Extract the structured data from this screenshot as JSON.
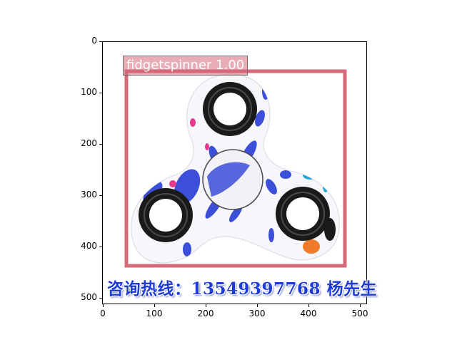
{
  "image": {
    "detection": {
      "label": "fidgetspinner 1.00",
      "box_color": "#d6697a"
    },
    "watermark_text": "咨询热线：13549397768 杨先生",
    "watermark_color": "#1e3bd6"
  },
  "axes": {
    "yticks": [
      "0",
      "100",
      "200",
      "300",
      "400",
      "500"
    ],
    "xticks": [
      "0",
      "100",
      "200",
      "300",
      "400",
      "500"
    ]
  },
  "colors": {
    "spinner_body": "#f7f7fb",
    "ring": "#1a1a1a",
    "blue_pattern": "#3b4fd8",
    "pink_pattern": "#e8398f",
    "cyan_pattern": "#2aa6d8",
    "orange_pattern": "#f07a2a"
  }
}
